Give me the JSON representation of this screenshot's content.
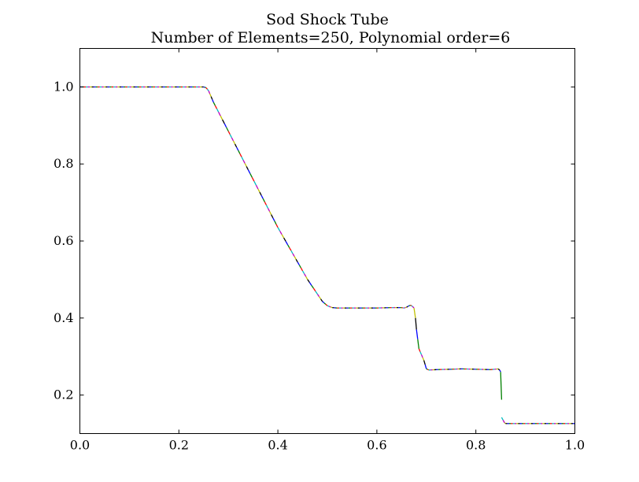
{
  "chart_data": {
    "type": "line",
    "title": "Sod Shock Tube",
    "subtitle": "Number of Elements=250, Polynomial order=6",
    "xlabel": "",
    "ylabel": "",
    "xlim": [
      0.0,
      1.0
    ],
    "ylim": [
      0.1,
      1.1
    ],
    "xticks": [
      0.0,
      0.2,
      0.4,
      0.6,
      0.8,
      1.0
    ],
    "xtick_labels": [
      "0.0",
      "0.2",
      "0.4",
      "0.6",
      "0.8",
      "1.0"
    ],
    "yticks": [
      0.2,
      0.4,
      0.6,
      0.8,
      1.0
    ],
    "ytick_labels": [
      "0.2",
      "0.4",
      "0.6",
      "0.8",
      "1.0"
    ],
    "grid": false,
    "legend": "none",
    "palette": [
      "#0000ff",
      "#008000",
      "#ff0000",
      "#00bfbf",
      "#bf00bf",
      "#bfbf00",
      "#000000"
    ],
    "series": [
      {
        "x": [
          0.0,
          0.1,
          0.2,
          0.25,
          0.255,
          0.26,
          0.265,
          0.27,
          0.28,
          0.3,
          0.32,
          0.34,
          0.36,
          0.38,
          0.4,
          0.42,
          0.44,
          0.46,
          0.48,
          0.49,
          0.5,
          0.51,
          0.52,
          0.55,
          0.6,
          0.63,
          0.65,
          0.655,
          0.66,
          0.665,
          0.668,
          0.67,
          0.672,
          0.675,
          0.678,
          0.68,
          0.685,
          0.69,
          0.695,
          0.7,
          0.705,
          0.72,
          0.75,
          0.77,
          0.8,
          0.83,
          0.845,
          0.848,
          0.85,
          0.852
        ],
        "y": [
          1.0,
          1.0,
          1.0,
          1.0,
          0.998,
          0.99,
          0.975,
          0.96,
          0.935,
          0.885,
          0.835,
          0.785,
          0.735,
          0.685,
          0.635,
          0.59,
          0.545,
          0.5,
          0.462,
          0.443,
          0.432,
          0.427,
          0.426,
          0.426,
          0.426,
          0.427,
          0.427,
          0.426,
          0.428,
          0.432,
          0.433,
          0.432,
          0.43,
          0.426,
          0.4,
          0.37,
          0.32,
          0.305,
          0.29,
          0.268,
          0.265,
          0.266,
          0.267,
          0.268,
          0.267,
          0.266,
          0.268,
          0.265,
          0.26,
          0.188
        ]
      },
      {
        "x": [
          0.852,
          0.855,
          0.858,
          0.86,
          0.9,
          0.95,
          1.0
        ],
        "y": [
          0.142,
          0.135,
          0.128,
          0.126,
          0.126,
          0.126,
          0.126
        ]
      }
    ]
  }
}
